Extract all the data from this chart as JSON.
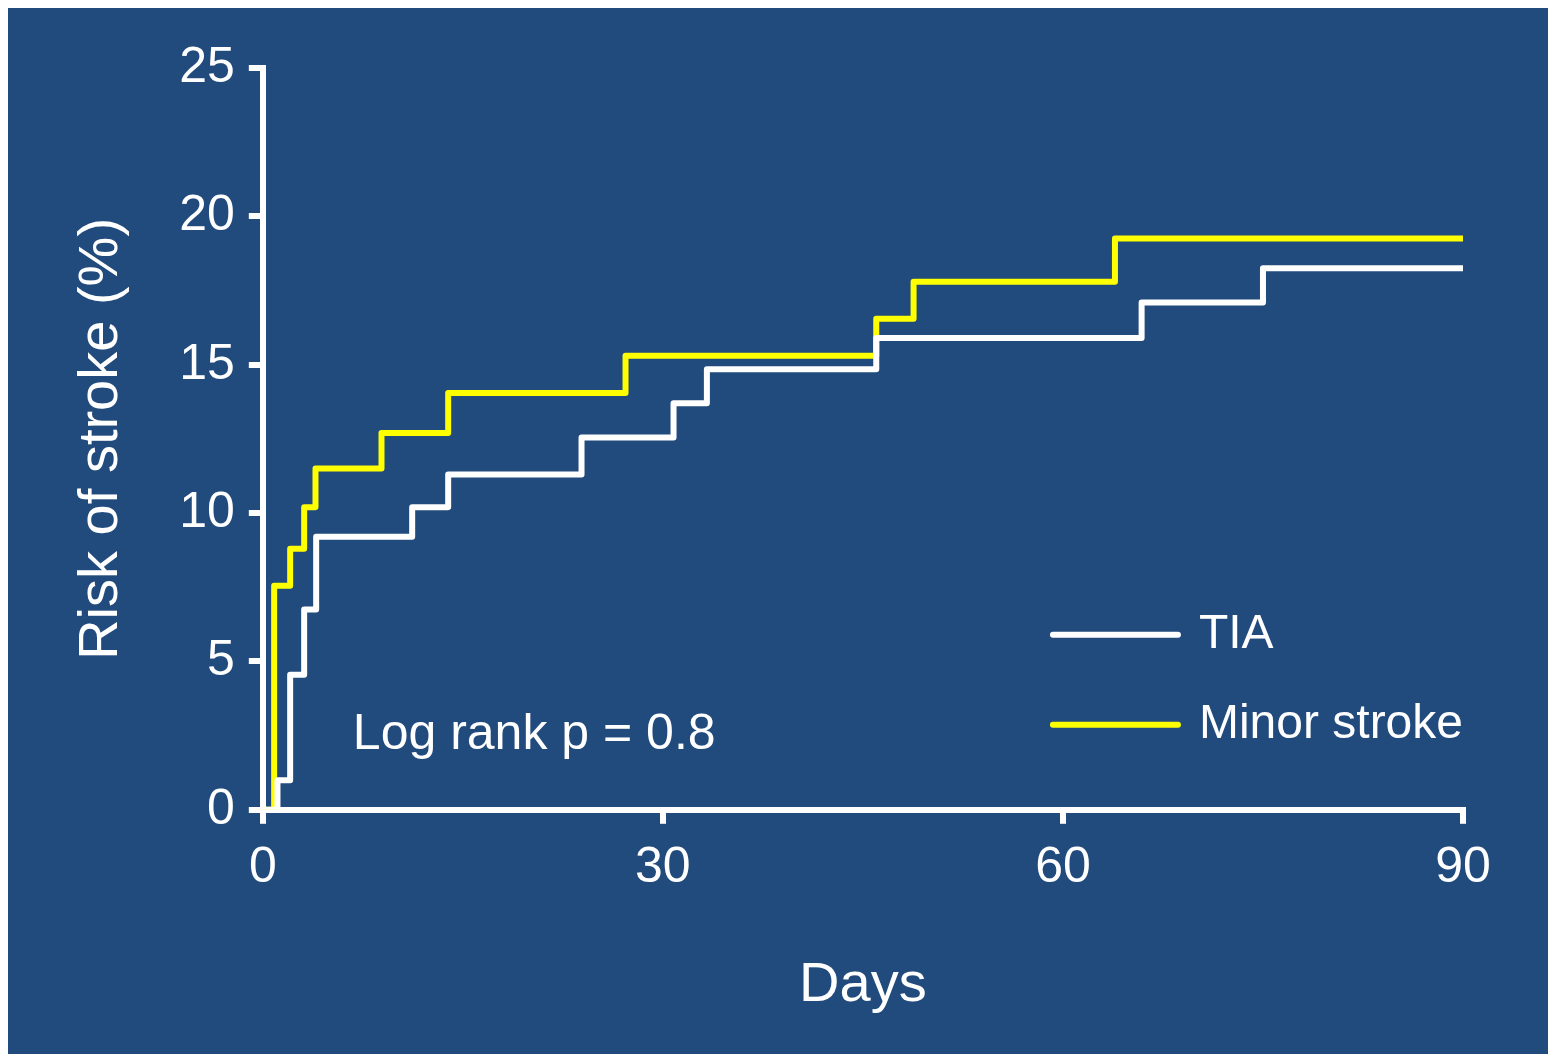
{
  "chart_data": {
    "type": "step",
    "xlabel": "Days",
    "ylabel": "Risk of stroke (%)",
    "xlim": [
      0,
      90
    ],
    "xticks": [
      0,
      30,
      60,
      90
    ],
    "ylim": [
      0,
      25
    ],
    "yticks": [
      0,
      5,
      10,
      15,
      20,
      25
    ],
    "grid": false,
    "legend": "bottom right",
    "marker": "none",
    "line_style": "solid",
    "annotations": [
      "Log rank p = 0.8"
    ],
    "series": [
      {
        "name": "TIA",
        "color": "#ffffff",
        "x": [
          0,
          1.1,
          2.05,
          3.1,
          4.0,
          11.2,
          13.9,
          23.9,
          30.8,
          33.3,
          46.0,
          65.9,
          75.0,
          90
        ],
        "values": [
          0,
          1.0,
          4.55,
          6.75,
          9.2,
          10.2,
          11.3,
          12.55,
          13.7,
          14.85,
          15.9,
          17.1,
          18.25,
          18.25
        ]
      },
      {
        "name": "Minor stroke",
        "color": "#ffff00",
        "x": [
          0,
          0.85,
          2.05,
          3.1,
          3.95,
          8.9,
          13.9,
          27.2,
          46.0,
          48.8,
          63.9,
          90
        ],
        "values": [
          0,
          7.55,
          8.8,
          10.2,
          11.5,
          12.7,
          14.05,
          15.3,
          16.55,
          17.8,
          19.25,
          19.25
        ]
      }
    ]
  }
}
